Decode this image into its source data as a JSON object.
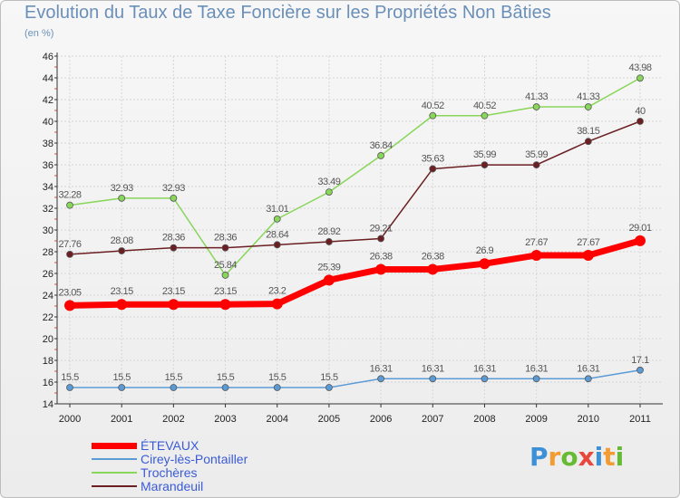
{
  "title": "Evolution du Taux de Taxe Foncière sur les Propriétés Non Bâties",
  "subtitle": "(en %)",
  "brand": {
    "text": "Proxiti",
    "colors": [
      "#3d8fd6",
      "#f39c34",
      "#66bb33",
      "#e8473c",
      "#3d8fd6",
      "#f39c34",
      "#66bb33"
    ]
  },
  "chart_data": {
    "type": "line",
    "title": "Evolution du Taux de Taxe Foncière sur les Propriétés Non Bâties",
    "ylabel": "(en %)",
    "xlabel": "",
    "ylim": [
      14,
      46
    ],
    "ytick_step": 2,
    "x": [
      "2000",
      "2001",
      "2002",
      "2003",
      "2004",
      "2005",
      "2006",
      "2007",
      "2008",
      "2009",
      "2010",
      "2011"
    ],
    "series": [
      {
        "name": "Cirey-lès-Pontailler",
        "color": "#5b9bd5",
        "values": [
          15.5,
          15.5,
          15.5,
          15.5,
          15.5,
          15.5,
          16.31,
          16.31,
          16.31,
          16.31,
          16.31,
          17.1
        ],
        "labels": [
          "15.5",
          "15.5",
          "15.5",
          "15.5",
          "15.5",
          "15.5",
          "16.31",
          "16.31",
          "16.31",
          "16.31",
          "16.31",
          "17.1"
        ]
      },
      {
        "name": "Trochères",
        "color": "#88d65a",
        "values": [
          32.28,
          32.93,
          32.93,
          25.84,
          31.01,
          33.49,
          36.84,
          40.52,
          40.52,
          41.33,
          41.33,
          43.98
        ],
        "labels": [
          "32.28",
          "32.93",
          "32.93",
          "25.84",
          "31.01",
          "33.49",
          "36.84",
          "40.52",
          "40.52",
          "41.33",
          "41.33",
          "43.98"
        ]
      },
      {
        "name": "Marandeuil",
        "color": "#6b1f22",
        "values": [
          27.76,
          28.08,
          28.36,
          28.36,
          28.64,
          28.92,
          29.21,
          35.63,
          35.99,
          35.99,
          38.15,
          40
        ],
        "labels": [
          "27.76",
          "28.08",
          "28.36",
          "28.36",
          "28.64",
          "28.92",
          "29.21",
          "35.63",
          "35.99",
          "35.99",
          "38.15",
          "40"
        ]
      },
      {
        "name": "ÉTEVAUX",
        "color": "#ff0000",
        "values": [
          23.05,
          23.15,
          23.15,
          23.15,
          23.2,
          25.39,
          26.38,
          26.38,
          26.9,
          27.67,
          27.67,
          29.01
        ],
        "labels": [
          "23.05",
          "23.15",
          "23.15",
          "23.15",
          "23.2",
          "25.39",
          "26.38",
          "26.38",
          "26.9",
          "27.67",
          "27.67",
          "29.01"
        ]
      }
    ],
    "legend": [
      "ÉTEVAUX",
      "Cirey-lès-Pontailler",
      "Trochères",
      "Marandeuil"
    ],
    "legend_position": "bottom-left",
    "grid": true
  }
}
